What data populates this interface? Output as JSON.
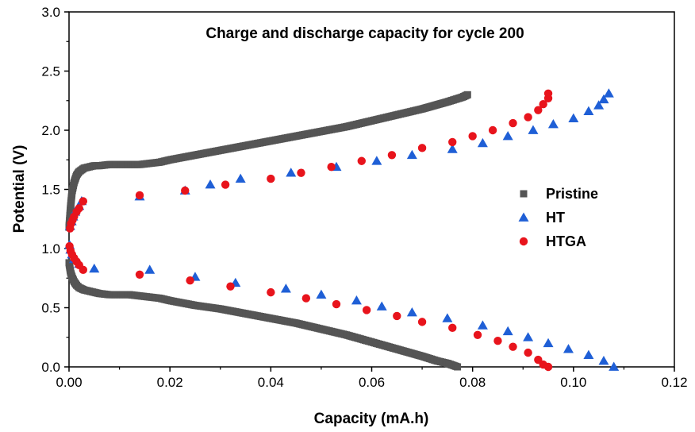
{
  "chart_data": {
    "type": "scatter",
    "title": "Charge and discharge capacity for cycle 200",
    "xlabel": "Capacity (mA.h)",
    "ylabel": "Potential (V)",
    "xlim": [
      0.0,
      0.12
    ],
    "ylim": [
      0.0,
      3.0
    ],
    "x_ticks": [
      0.0,
      0.02,
      0.04,
      0.06,
      0.08,
      0.1,
      0.12
    ],
    "x_tick_labels": [
      "0.00",
      "0.02",
      "0.04",
      "0.06",
      "0.08",
      "0.10",
      "0.12"
    ],
    "y_ticks": [
      0.0,
      0.5,
      1.0,
      1.5,
      2.0,
      2.5,
      3.0
    ],
    "y_tick_labels": [
      "0.0",
      "0.5",
      "1.0",
      "1.5",
      "2.0",
      "2.5",
      "3.0"
    ],
    "grid": false,
    "legend_position": "right",
    "series": [
      {
        "name": "Pristine",
        "marker": "square",
        "color": "#555555",
        "segments": [
          {
            "label": "charge",
            "x": [
              0.0,
              0.0003,
              0.0006,
              0.001,
              0.0015,
              0.002,
              0.003,
              0.004,
              0.005,
              0.006,
              0.008,
              0.01,
              0.012,
              0.014,
              0.016,
              0.018,
              0.02,
              0.025,
              0.03,
              0.035,
              0.04,
              0.045,
              0.05,
              0.055,
              0.06,
              0.065,
              0.07,
              0.075,
              0.078,
              0.079
            ],
            "y": [
              1.18,
              1.35,
              1.48,
              1.56,
              1.62,
              1.65,
              1.68,
              1.69,
              1.7,
              1.7,
              1.71,
              1.71,
              1.71,
              1.71,
              1.72,
              1.73,
              1.75,
              1.79,
              1.83,
              1.87,
              1.91,
              1.95,
              1.99,
              2.03,
              2.08,
              2.13,
              2.18,
              2.24,
              2.28,
              2.3
            ]
          },
          {
            "label": "discharge",
            "x": [
              0.0,
              0.0003,
              0.0006,
              0.001,
              0.0015,
              0.002,
              0.003,
              0.004,
              0.005,
              0.006,
              0.008,
              0.01,
              0.012,
              0.014,
              0.016,
              0.018,
              0.02,
              0.025,
              0.03,
              0.035,
              0.04,
              0.045,
              0.05,
              0.055,
              0.06,
              0.065,
              0.07,
              0.073,
              0.075,
              0.077
            ],
            "y": [
              0.88,
              0.8,
              0.76,
              0.72,
              0.69,
              0.67,
              0.65,
              0.64,
              0.63,
              0.62,
              0.61,
              0.61,
              0.61,
              0.6,
              0.59,
              0.58,
              0.56,
              0.52,
              0.49,
              0.45,
              0.41,
              0.37,
              0.32,
              0.27,
              0.21,
              0.15,
              0.09,
              0.05,
              0.03,
              0.0
            ]
          }
        ]
      },
      {
        "name": "HT",
        "marker": "triangle",
        "color": "#1f5fd6",
        "segments": [
          {
            "label": "charge",
            "x": [
              0.0002,
              0.0005,
              0.0008,
              0.0012,
              0.002,
              0.0025,
              0.014,
              0.023,
              0.028,
              0.034,
              0.044,
              0.053,
              0.061,
              0.068,
              0.076,
              0.082,
              0.087,
              0.092,
              0.096,
              0.1,
              0.103,
              0.105,
              0.106,
              0.107
            ],
            "y": [
              1.19,
              1.23,
              1.27,
              1.31,
              1.36,
              1.4,
              1.44,
              1.49,
              1.54,
              1.59,
              1.64,
              1.69,
              1.74,
              1.79,
              1.84,
              1.89,
              1.95,
              2.0,
              2.05,
              2.1,
              2.16,
              2.21,
              2.26,
              2.31
            ]
          },
          {
            "label": "discharge",
            "x": [
              0.0001,
              0.0003,
              0.0006,
              0.001,
              0.002,
              0.005,
              0.016,
              0.025,
              0.033,
              0.043,
              0.05,
              0.057,
              0.062,
              0.068,
              0.075,
              0.082,
              0.087,
              0.091,
              0.095,
              0.099,
              0.103,
              0.106,
              0.108
            ],
            "y": [
              1.03,
              0.99,
              0.95,
              0.91,
              0.87,
              0.83,
              0.82,
              0.76,
              0.71,
              0.66,
              0.61,
              0.56,
              0.51,
              0.46,
              0.41,
              0.35,
              0.3,
              0.25,
              0.2,
              0.15,
              0.1,
              0.05,
              0.0
            ]
          }
        ]
      },
      {
        "name": "HTGA",
        "marker": "circle",
        "color": "#e8141c",
        "segments": [
          {
            "label": "charge",
            "x": [
              0.0002,
              0.0004,
              0.0007,
              0.001,
              0.0015,
              0.002,
              0.0028,
              0.014,
              0.023,
              0.031,
              0.04,
              0.046,
              0.052,
              0.058,
              0.064,
              0.07,
              0.076,
              0.08,
              0.084,
              0.088,
              0.091,
              0.093,
              0.094,
              0.095,
              0.095
            ],
            "y": [
              1.17,
              1.21,
              1.24,
              1.27,
              1.31,
              1.34,
              1.4,
              1.45,
              1.49,
              1.54,
              1.59,
              1.64,
              1.69,
              1.74,
              1.79,
              1.85,
              1.9,
              1.95,
              2.0,
              2.06,
              2.11,
              2.17,
              2.22,
              2.27,
              2.31
            ]
          },
          {
            "label": "discharge",
            "x": [
              0.0001,
              0.0003,
              0.0006,
              0.001,
              0.0015,
              0.002,
              0.0028,
              0.014,
              0.024,
              0.032,
              0.04,
              0.047,
              0.053,
              0.059,
              0.065,
              0.07,
              0.076,
              0.081,
              0.085,
              0.088,
              0.091,
              0.093,
              0.094,
              0.095
            ],
            "y": [
              1.02,
              0.98,
              0.95,
              0.92,
              0.89,
              0.86,
              0.82,
              0.78,
              0.73,
              0.68,
              0.63,
              0.58,
              0.53,
              0.48,
              0.43,
              0.38,
              0.33,
              0.27,
              0.22,
              0.17,
              0.12,
              0.06,
              0.02,
              0.0
            ]
          }
        ]
      }
    ]
  }
}
